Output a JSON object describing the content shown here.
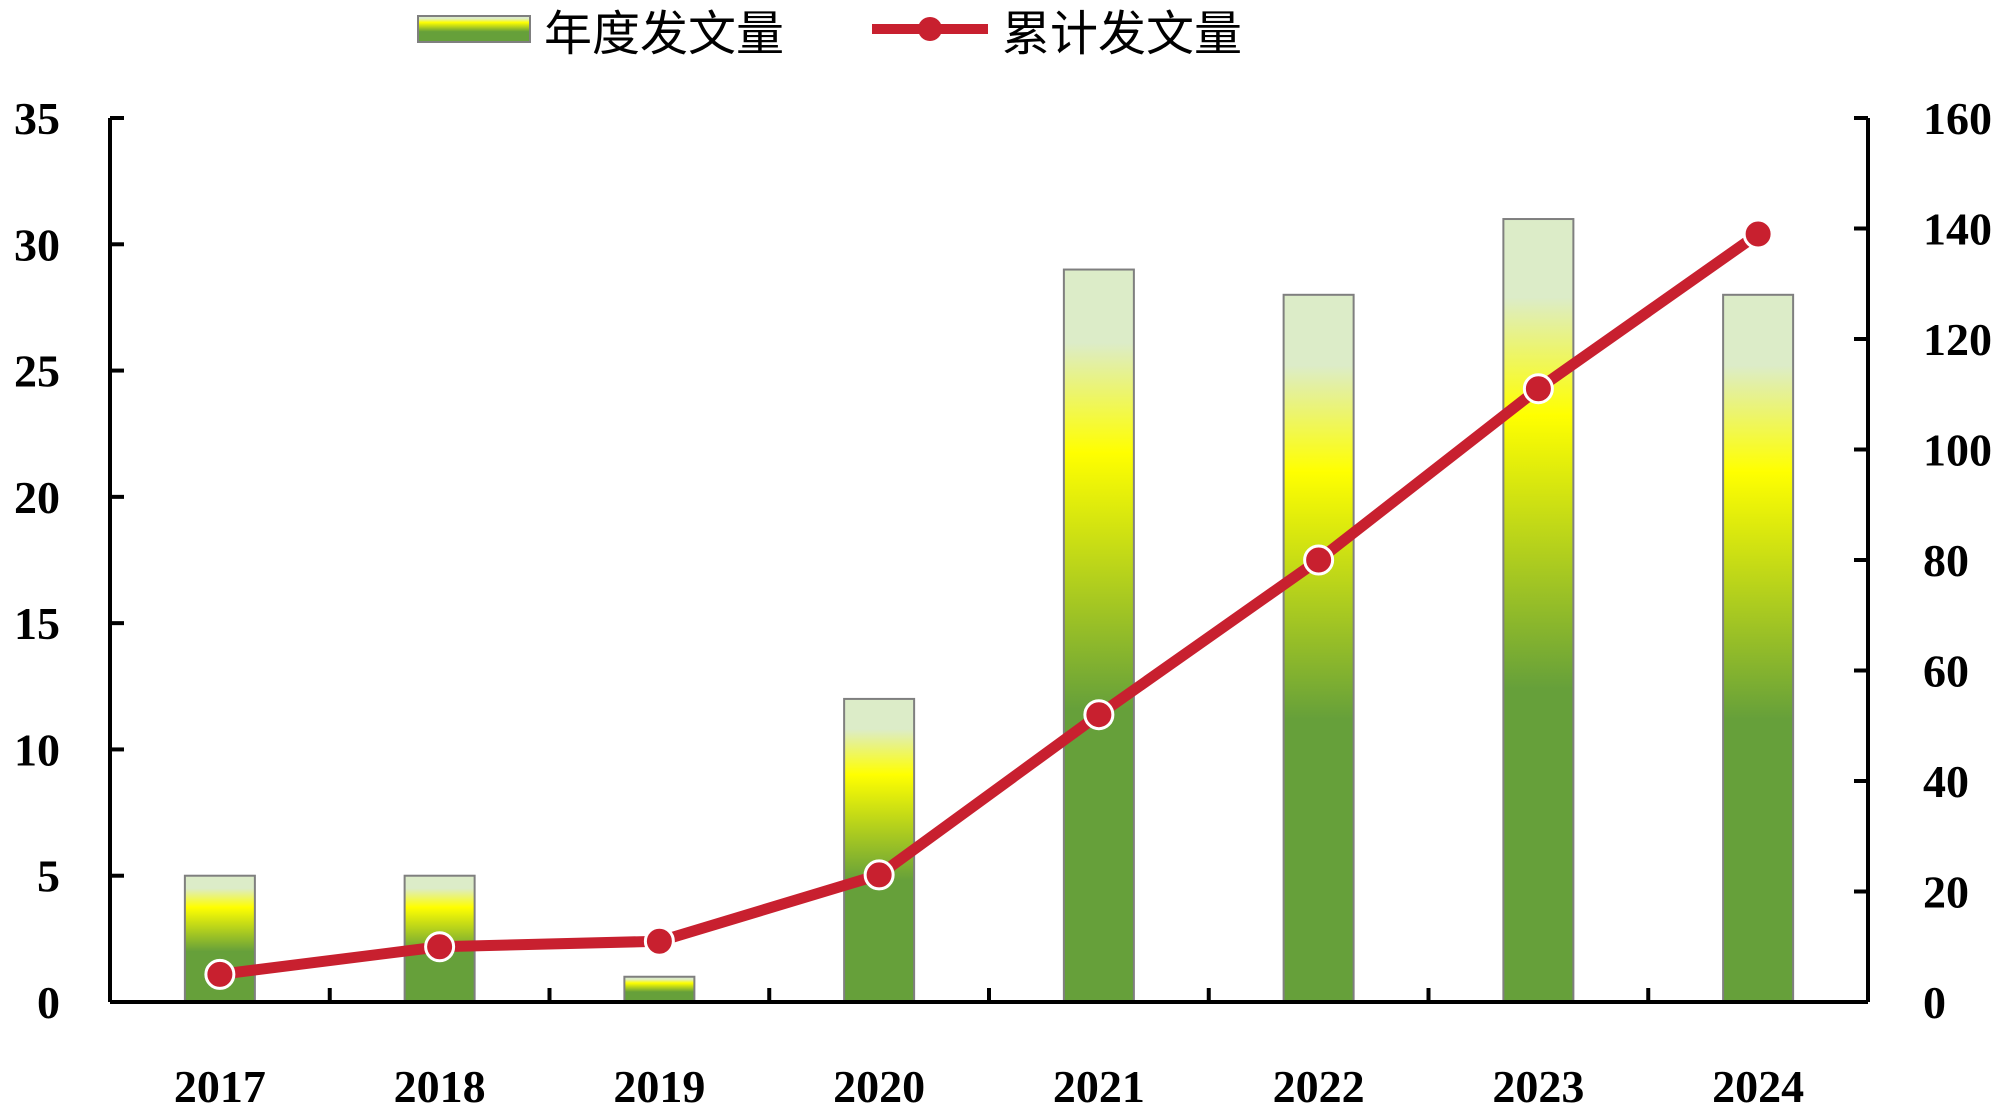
{
  "chart_data": {
    "type": "bar+line",
    "categories": [
      "2017",
      "2018",
      "2019",
      "2020",
      "2021",
      "2022",
      "2023",
      "2024"
    ],
    "series": [
      {
        "name": "年度发文量",
        "type": "bar",
        "axis": "left",
        "values": [
          5,
          5,
          1,
          12,
          29,
          28,
          31,
          28
        ]
      },
      {
        "name": "累计发文量",
        "type": "line",
        "axis": "right",
        "values": [
          5,
          10,
          11,
          23,
          52,
          80,
          111,
          139
        ]
      }
    ],
    "y_left": {
      "min": 0,
      "max": 35,
      "ticks": [
        "0",
        "5",
        "10",
        "15",
        "20",
        "25",
        "30",
        "35"
      ]
    },
    "y_right": {
      "min": 0,
      "max": 160,
      "ticks": [
        "0",
        "20",
        "40",
        "60",
        "80",
        "100",
        "120",
        "140",
        "160"
      ]
    },
    "grid": false,
    "legend_position": "top-center",
    "colors": {
      "bar_bottom": "#66a03a",
      "bar_middle": "#ffff00",
      "bar_top": "#dcecc8",
      "bar_border": "#7f7f7f",
      "line": "#c8202f",
      "axis": "#000000"
    }
  }
}
